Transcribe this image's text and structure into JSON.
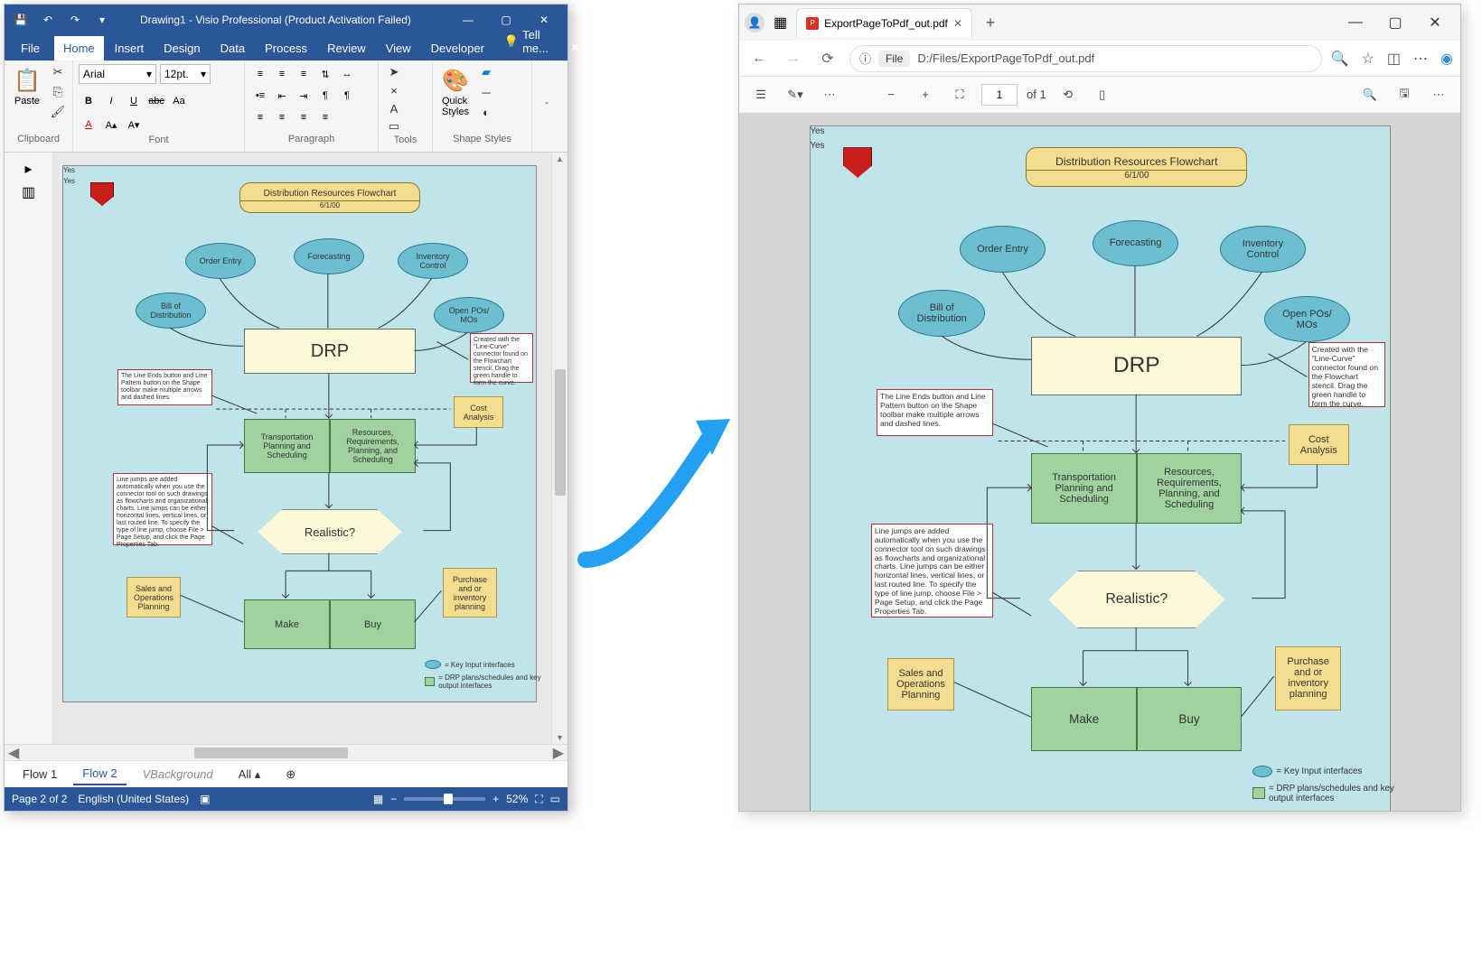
{
  "visio": {
    "title": "Drawing1 - Visio Professional (Product Activation Failed)",
    "tabs": {
      "file": "File",
      "home": "Home",
      "insert": "Insert",
      "design": "Design",
      "data": "Data",
      "process": "Process",
      "review": "Review",
      "view": "View",
      "developer": "Developer",
      "tellme": "Tell me..."
    },
    "ribbon": {
      "clipboard": "Clipboard",
      "paste": "Paste",
      "font_group": "Font",
      "font_name": "Arial",
      "font_size": "12pt.",
      "paragraph": "Paragraph",
      "tools": "Tools",
      "shape_styles": "Shape Styles",
      "quick_styles": "Quick\nStyles"
    },
    "page_tabs": {
      "flow1": "Flow 1",
      "flow2": "Flow 2",
      "vbg": "VBackground",
      "all": "All"
    },
    "status": {
      "page": "Page 2 of 2",
      "lang": "English (United States)",
      "zoom": "52%"
    }
  },
  "edge": {
    "tab_title": "ExportPageToPdf_out.pdf",
    "addr_badge": "File",
    "addr_path": "D:/Files/ExportPageToPdf_out.pdf",
    "page_current": "1",
    "page_of": "of 1"
  },
  "colors": {
    "canvas_bg": "#bfe4ea",
    "ellipse_fill": "#6bbfd1",
    "ellipse_stroke": "#2a7a8f",
    "drp_fill": "#fdf8d8",
    "green_fill": "#9fd29f",
    "yellow_fill": "#f4dd8e",
    "note_border": "#a33",
    "arrow": "#23a0f2",
    "visio_brand": "#2b579a"
  },
  "flowchart": {
    "title": "Distribution Resources Flowchart",
    "date": "6/1/00",
    "nodes": {
      "order_entry": "Order Entry",
      "forecasting": "Forecasting",
      "inventory_control": "Inventory\nControl",
      "bill_dist": "Bill of\nDistribution",
      "open_pos": "Open POs/\nMOs",
      "drp": "DRP",
      "transport": "Transportation\nPlanning and\nScheduling",
      "resources": "Resources,\nRequirements,\nPlanning, and\nScheduling",
      "cost": "Cost\nAnalysis",
      "realistic": "Realistic?",
      "sales_ops": "Sales and\nOperations\nPlanning",
      "purchase": "Purchase\nand or\ninventory\nplanning",
      "make": "Make",
      "buy": "Buy",
      "yes1": "Yes",
      "yes2": "Yes"
    },
    "notes": {
      "line_ends": "The Line Ends button and Line Pattern button on the Shape toolbar make multiple arrows and dashed lines.",
      "line_curve": "Created with the \"Line-Curve\" connector found on the Flowchart stencil.  Drag the green handle to form the curve.",
      "line_jumps": "Line jumps are added automatically when you use the connector tool on such drawings as flowcharts and organizational charts.  Line jumps can be either horizontal lines, vertical lines, or last routed line.  To specify the type of line jump, choose File > Page Setup, and click the Page Properties Tab."
    },
    "legend": {
      "key_input": "= Key Input interfaces",
      "drp_out": "= DRP plans/schedules and key output interfaces"
    }
  }
}
